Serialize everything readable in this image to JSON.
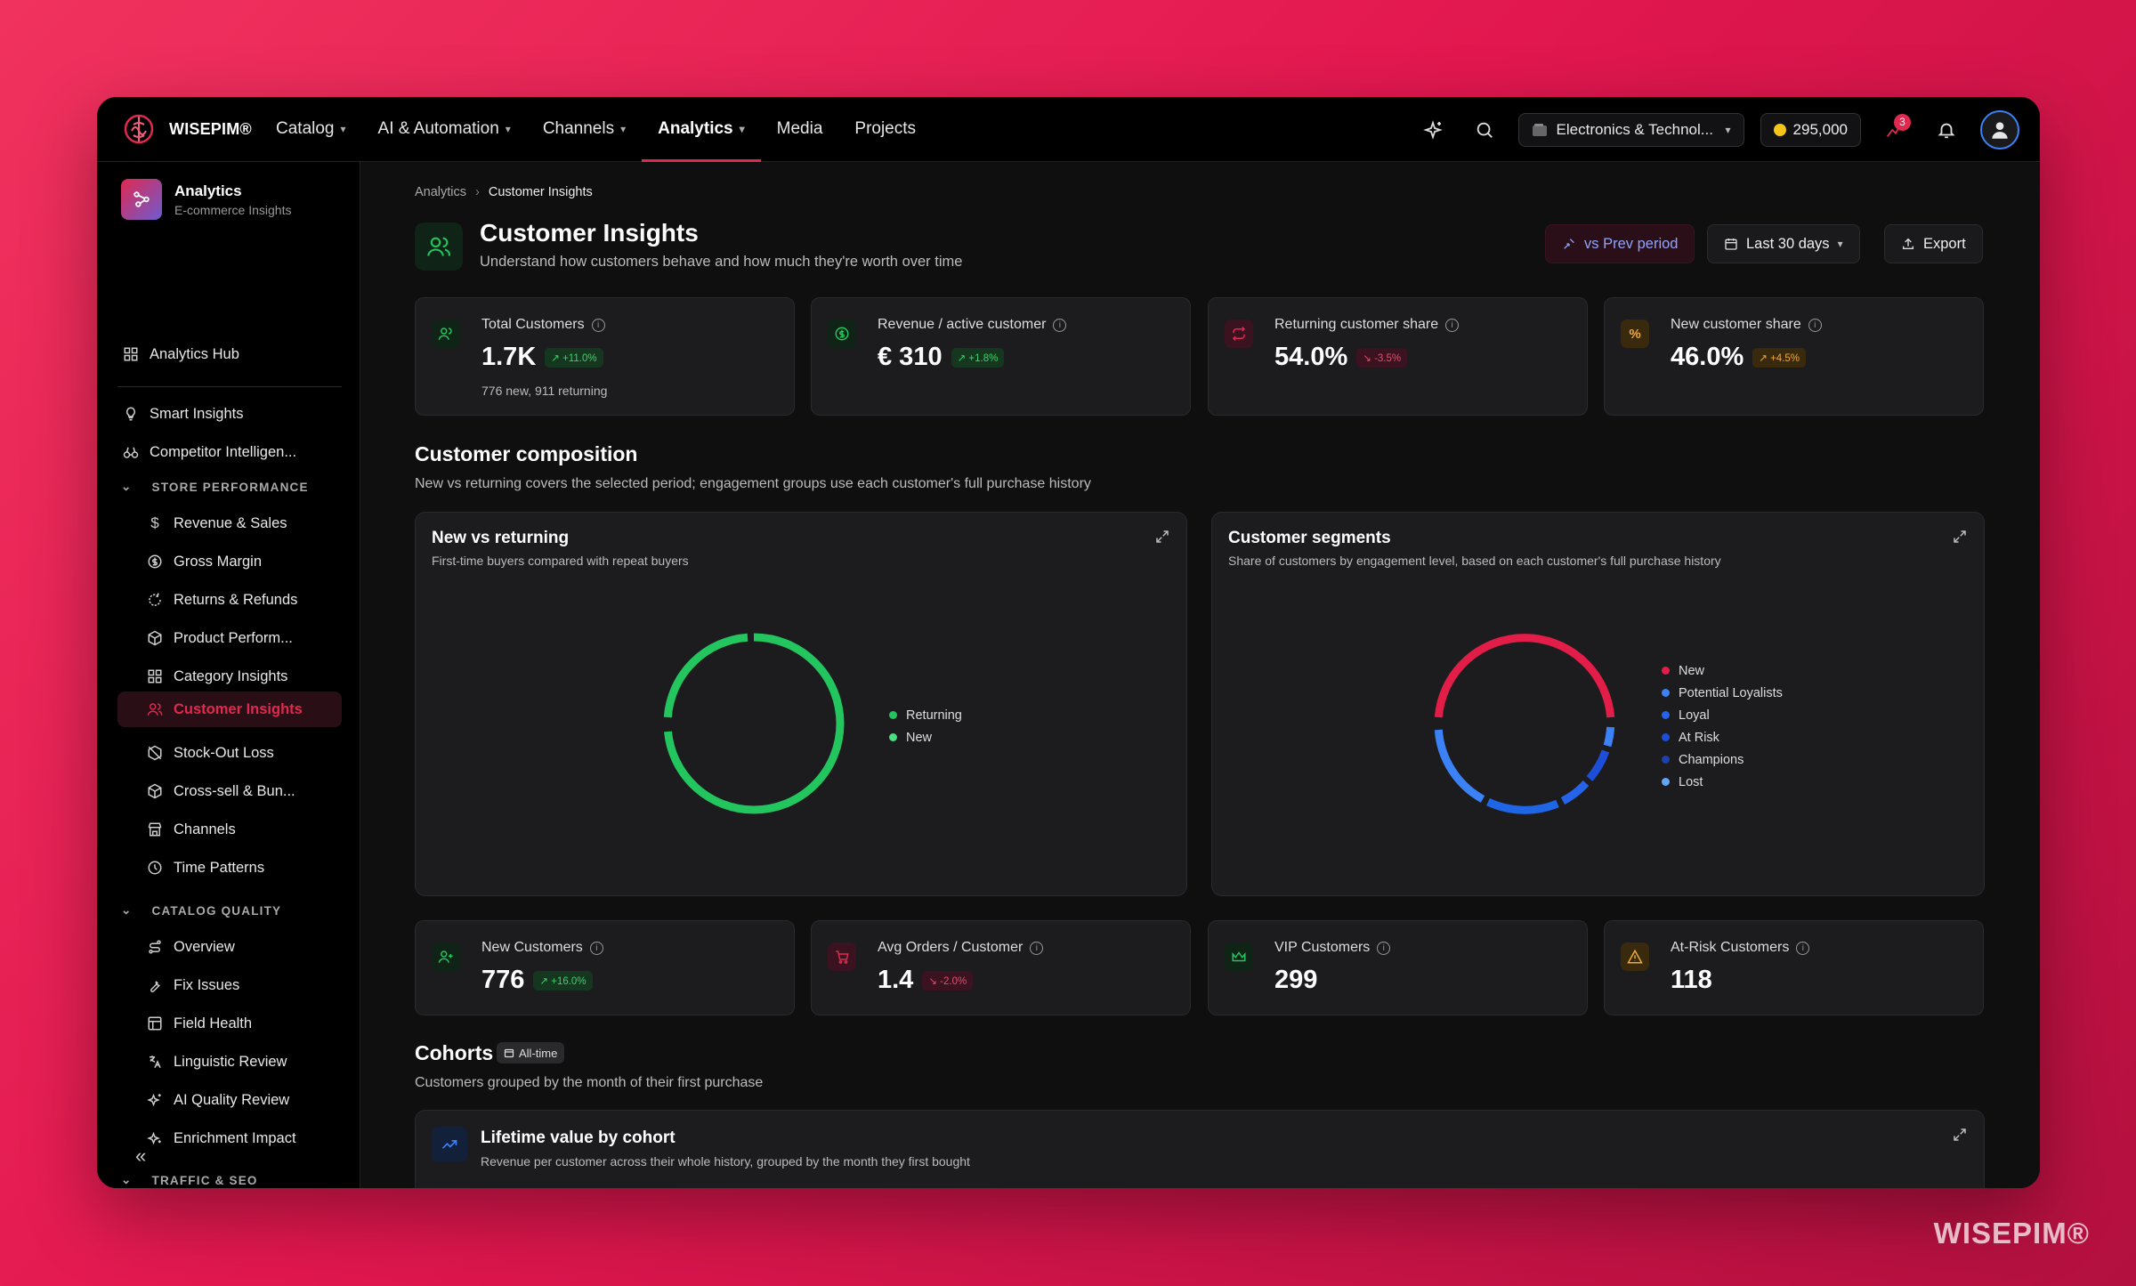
{
  "topbar": {
    "brand": "WISEPIM®",
    "nav": [
      {
        "label": "Catalog",
        "has_menu": true
      },
      {
        "label": "AI & Automation",
        "has_menu": true
      },
      {
        "label": "Channels",
        "has_menu": true
      },
      {
        "label": "Analytics",
        "has_menu": true,
        "active": true
      },
      {
        "label": "Media",
        "has_menu": false
      },
      {
        "label": "Projects",
        "has_menu": false
      }
    ],
    "store": "Electronics & Technol...",
    "credits": "295,000",
    "notification_count": "3"
  },
  "sidebar": {
    "header_title": "Analytics",
    "header_sub": "E-commerce Insights",
    "hub": "Analytics Hub",
    "top_items": [
      "Smart Insights",
      "Competitor Intelligen..."
    ],
    "store_performance": {
      "title": "STORE PERFORMANCE",
      "items": [
        "Revenue & Sales",
        "Gross Margin",
        "Returns & Refunds",
        "Product Perform...",
        "Category Insights",
        "Customer Insights",
        "Stock-Out Loss",
        "Cross-sell & Bun...",
        "Channels",
        "Time Patterns"
      ]
    },
    "catalog_quality": {
      "title": "CATALOG QUALITY",
      "items": [
        "Overview",
        "Fix Issues",
        "Field Health",
        "Linguistic Review",
        "AI Quality Review",
        "Enrichment Impact"
      ]
    },
    "traffic_seo": {
      "title": "TRAFFIC & SEO"
    },
    "collapse_glyph": "«"
  },
  "breadcrumb": {
    "parent": "Analytics",
    "current": "Customer Insights"
  },
  "header": {
    "title": "Customer Insights",
    "subtitle": "Understand how customers behave and how much they're worth over time",
    "compare_label": "vs Prev period",
    "range_label": "Last 30 days",
    "export_label": "Export"
  },
  "kpis_top": [
    {
      "label": "Total Customers",
      "value": "1.7K",
      "change": "↗ +11.0%",
      "trend": "up",
      "note": "776 new, 911 returning"
    },
    {
      "label": "Revenue / active customer",
      "value": "€ 310",
      "change": "↗ +1.8%",
      "trend": "up"
    },
    {
      "label": "Returning customer share",
      "value": "54.0%",
      "change": "↘ -3.5%",
      "trend": "down"
    },
    {
      "label": "New customer share",
      "value": "46.0%",
      "change": "↗ +4.5%",
      "trend": "warn"
    }
  ],
  "composition": {
    "title": "Customer composition",
    "subtitle": "New vs returning covers the selected period; engagement groups use each customer's full purchase history"
  },
  "new_vs_returning": {
    "title": "New vs returning",
    "subtitle": "First-time buyers compared with repeat buyers",
    "legend": [
      {
        "label": "Returning",
        "color": "#22c55e"
      },
      {
        "label": "New",
        "color": "#4ade80"
      }
    ]
  },
  "segments": {
    "title": "Customer segments",
    "subtitle": "Share of customers by engagement level, based on each customer's full purchase history",
    "legend": [
      {
        "label": "New",
        "color": "#e11d48"
      },
      {
        "label": "Potential Loyalists",
        "color": "#3b82f6"
      },
      {
        "label": "Loyal",
        "color": "#2563eb"
      },
      {
        "label": "At Risk",
        "color": "#1d4ed8"
      },
      {
        "label": "Champions",
        "color": "#1e40af"
      },
      {
        "label": "Lost",
        "color": "#60a5fa"
      }
    ]
  },
  "kpis_bottom": [
    {
      "label": "New Customers",
      "value": "776",
      "change": "↗ +16.0%",
      "trend": "up"
    },
    {
      "label": "Avg Orders / Customer",
      "value": "1.4",
      "change": "↘ -2.0%",
      "trend": "down"
    },
    {
      "label": "VIP Customers",
      "value": "299"
    },
    {
      "label": "At-Risk Customers",
      "value": "118"
    }
  ],
  "cohorts": {
    "title": "Cohorts",
    "tag": "All-time",
    "subtitle": "Customers grouped by the month of their first purchase",
    "panel_title": "Lifetime value by cohort",
    "panel_sub": "Revenue per customer across their whole history, grouped by the month they first bought"
  },
  "watermark": "WISEPIM®"
}
